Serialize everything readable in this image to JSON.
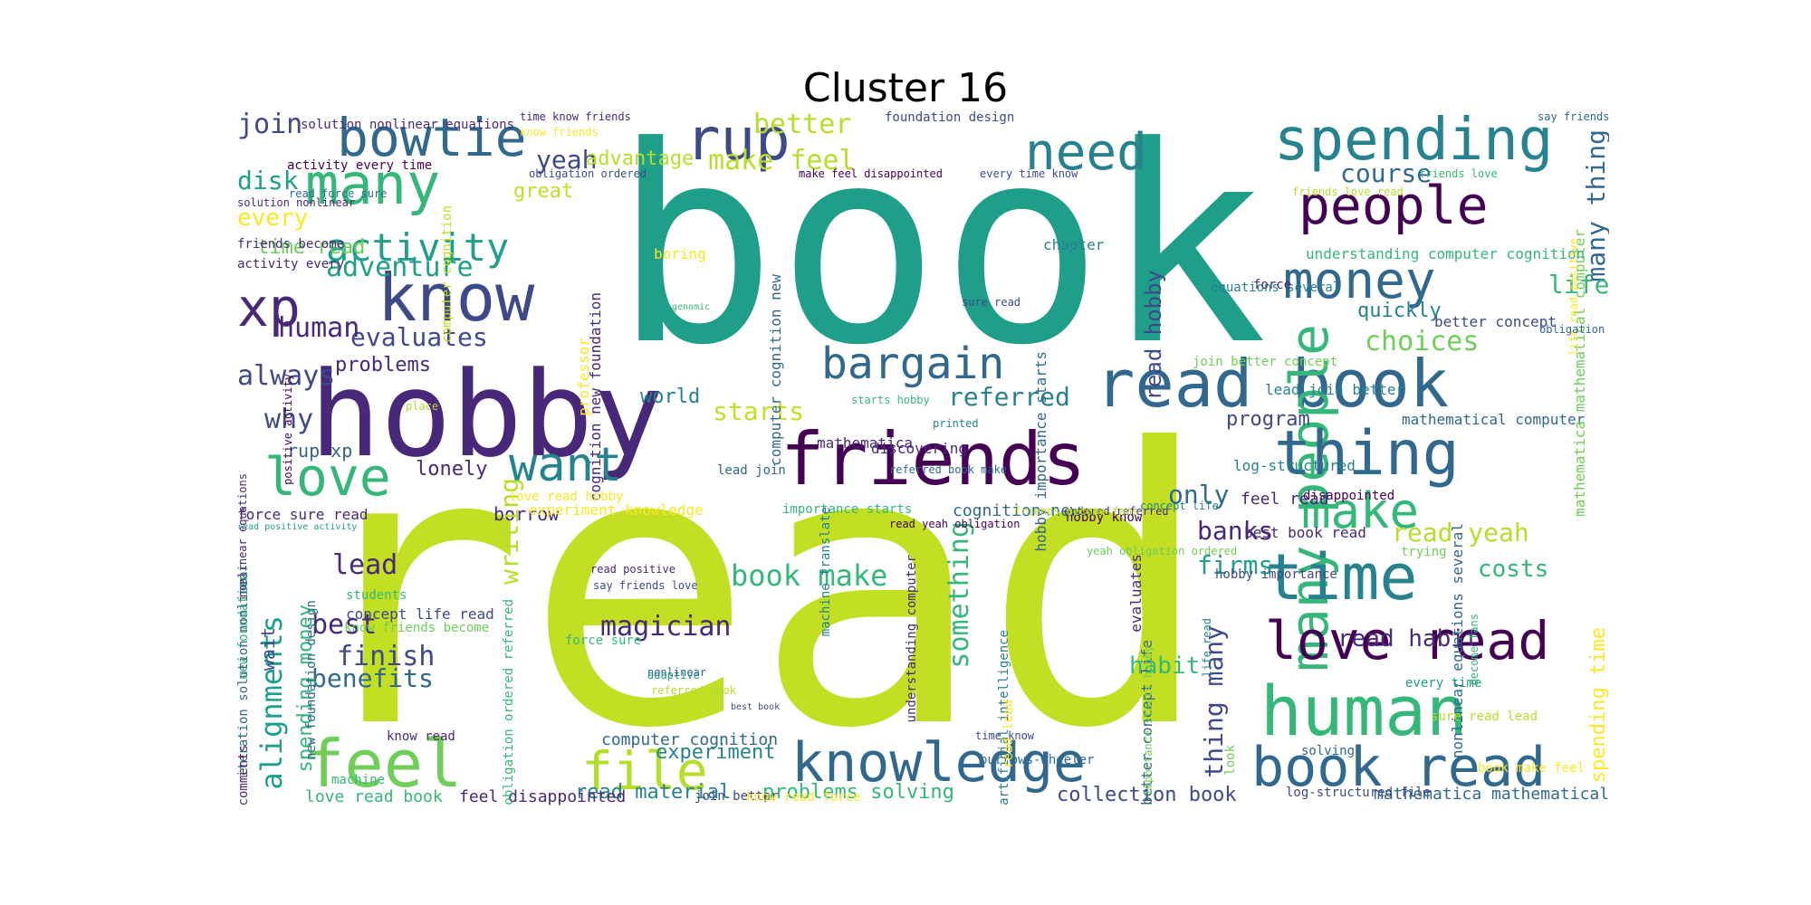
{
  "title": "Cluster 16",
  "palette": [
    "#440154",
    "#482878",
    "#3e4989",
    "#31688e",
    "#26828e",
    "#1f9e89",
    "#35b779",
    "#6ece58",
    "#b5de2b",
    "#c2df23",
    "#fde725"
  ],
  "words": [
    "read",
    "book",
    "hobby",
    "friends",
    "read book",
    "human",
    "feel",
    "file",
    "knowledge",
    "book read",
    "many people",
    "time",
    "thing",
    "love read",
    "people",
    "spending",
    "know",
    "bowtie",
    "many",
    "rup",
    "need",
    "money",
    "bargain",
    "want",
    "love",
    "make",
    "xp",
    "activity",
    "adventure",
    "evaluates",
    "human",
    "join",
    "disk",
    "every",
    "yeah",
    "advantage",
    "better",
    "make feel",
    "course",
    "many thing",
    "life",
    "quickly",
    "choices",
    "referred",
    "starts",
    "world",
    "program",
    "mathematical computer",
    "problems",
    "always",
    "why",
    "rup xp",
    "lonely",
    "borrow",
    "lead",
    "best",
    "finish",
    "benefits",
    "magician",
    "book make",
    "something",
    "writing",
    "alignments",
    "spending money",
    "wait",
    "only",
    "banks",
    "firms",
    "read yeah",
    "costs",
    "read habit",
    "habit",
    "thing many",
    "experiment",
    "read material",
    "problems solving",
    "collection book",
    "mathematica mathematical",
    "computer cognition",
    "love read book",
    "feel disappointed",
    "great",
    "time read",
    "read hobby",
    "mathematica mathematical computer",
    "spending time",
    "professor",
    "chapter",
    "boring",
    "cognition new foundation",
    "computer cognition new",
    "understanding computer cognition",
    "better concept",
    "hobby importance starts",
    "equations several",
    "join better concept",
    "mathematica",
    "discovering",
    "log-structured",
    "hobby know",
    "disappointed",
    "trying",
    "evaluates",
    "understanding computer",
    "experiment knowledge",
    "importance starts",
    "cognition new",
    "ordered referred",
    "machine translate",
    "feel read",
    "best book read",
    "nonlinear equations several",
    "force sure read",
    "love read hobby",
    "new foundation",
    "activity every",
    "friends become",
    "solution nonlinear equations",
    "activity every time",
    "read force sure",
    "solution nonlinear",
    "time know friends",
    "foundation design",
    "know friends",
    "obligation ordered",
    "make feel disappointed",
    "every time know",
    "friends love read",
    "friends love",
    "life read positive",
    "say friends",
    "computer cognition",
    "starts hobby",
    "sure read",
    "force",
    "obligation",
    "printed",
    "place",
    "positive activity",
    "nonlinear equations",
    "read positive",
    "say friends love",
    "students",
    "concept life read",
    "know friends become",
    "force sure",
    "iteration solution nonlinear",
    "better concept life",
    "artificial intelligence",
    "adaptive",
    "referred book",
    "nonlinear",
    "know read",
    "machine",
    "time know",
    "burrows-wheeler",
    "join better",
    "know read force",
    "read lead",
    "life read",
    "solving",
    "every time",
    "sure read lead",
    "log-structured file",
    "book make feel",
    "comments",
    "new foundation design",
    "obligation ordered referred",
    "importance starts hobby",
    "become fans",
    "concept life",
    "read yeah obligation",
    "referred book make",
    "lead join better",
    "lead join",
    "friends become fans",
    "yeah obligation ordered",
    "hobby importance",
    "best book",
    "read positive activity",
    "look",
    "genomic",
    "iteration solution",
    "greatness"
  ]
}
